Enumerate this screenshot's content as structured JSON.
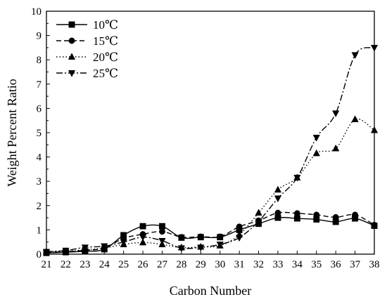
{
  "chart_data": {
    "type": "line",
    "xlabel": "Carbon Number",
    "ylabel": "Weight Percent Ratio",
    "xlim": [
      21,
      38
    ],
    "ylim": [
      0,
      10
    ],
    "x": [
      21,
      22,
      23,
      24,
      25,
      26,
      27,
      28,
      29,
      30,
      31,
      32,
      33,
      34,
      35,
      36,
      37,
      38
    ],
    "xticks": [
      "21",
      "22",
      "23",
      "24",
      "25",
      "26",
      "27",
      "28",
      "29",
      "30",
      "31",
      "32",
      "33",
      "34",
      "35",
      "36",
      "37",
      "38"
    ],
    "yticks": [
      "0",
      "1",
      "2",
      "3",
      "4",
      "5",
      "6",
      "7",
      "8",
      "9",
      "10"
    ],
    "legend_position": "top-left",
    "grid": false,
    "series": [
      {
        "name": "10℃",
        "marker": "square",
        "dash": "solid",
        "values": [
          0.05,
          0.08,
          0.12,
          0.2,
          0.78,
          1.15,
          1.15,
          0.68,
          0.7,
          0.7,
          1.0,
          1.25,
          1.5,
          1.47,
          1.43,
          1.33,
          1.47,
          1.17
        ]
      },
      {
        "name": "15℃",
        "marker": "circle",
        "dash": "dashed",
        "values": [
          0.07,
          0.1,
          0.16,
          0.25,
          0.65,
          0.82,
          0.93,
          0.7,
          0.72,
          0.72,
          1.13,
          1.38,
          1.7,
          1.68,
          1.62,
          1.52,
          1.62,
          1.2
        ]
      },
      {
        "name": "20℃",
        "marker": "triangle-up",
        "dash": "dotted",
        "values": [
          0.1,
          0.12,
          0.18,
          0.25,
          0.4,
          0.48,
          0.4,
          0.27,
          0.3,
          0.35,
          0.8,
          1.7,
          2.65,
          3.15,
          4.15,
          4.35,
          5.55,
          5.1
        ]
      },
      {
        "name": "25℃",
        "marker": "triangle-down",
        "dash": "dashdot",
        "values": [
          0.1,
          0.15,
          0.28,
          0.33,
          0.5,
          0.7,
          0.55,
          0.25,
          0.28,
          0.4,
          0.68,
          1.35,
          2.3,
          3.15,
          4.8,
          5.8,
          8.2,
          8.5
        ]
      }
    ]
  }
}
